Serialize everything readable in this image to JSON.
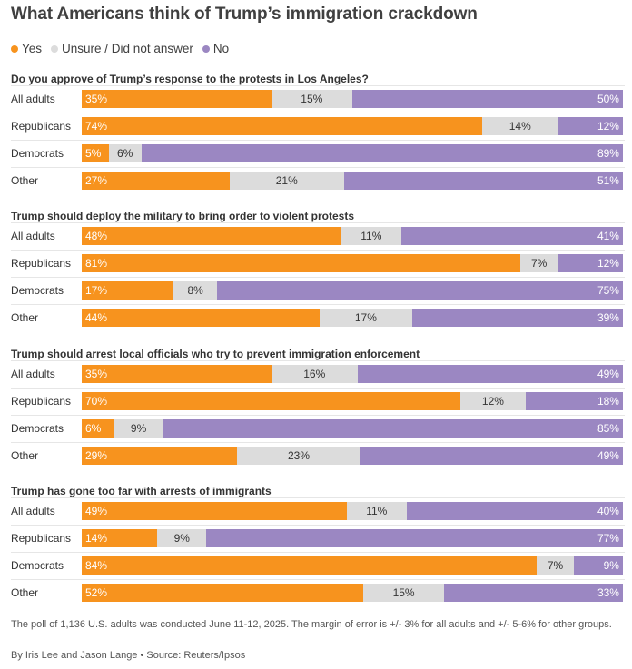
{
  "chart_data": {
    "type": "bar",
    "orientation": "horizontal-stacked-100",
    "title": "What Americans think of Trump’s immigration crackdown",
    "legend": [
      {
        "name": "Yes",
        "color": "#f7931e"
      },
      {
        "name": "Unsure / Did not answer",
        "color": "#dcdcdc"
      },
      {
        "name": "No",
        "color": "#9b87c2"
      }
    ],
    "categories": [
      "All adults",
      "Republicans",
      "Democrats",
      "Other"
    ],
    "panels": [
      {
        "question": "Do you approve of Trump’s response to the protests in Los Angeles?",
        "rows": [
          {
            "group": "All adults",
            "yes": 35,
            "unsure": 15,
            "no": 50
          },
          {
            "group": "Republicans",
            "yes": 74,
            "unsure": 14,
            "no": 12
          },
          {
            "group": "Democrats",
            "yes": 5,
            "unsure": 6,
            "no": 89
          },
          {
            "group": "Other",
            "yes": 27,
            "unsure": 21,
            "no": 51
          }
        ]
      },
      {
        "question": "Trump should deploy the military to bring order to violent protests",
        "rows": [
          {
            "group": "All adults",
            "yes": 48,
            "unsure": 11,
            "no": 41
          },
          {
            "group": "Republicans",
            "yes": 81,
            "unsure": 7,
            "no": 12
          },
          {
            "group": "Democrats",
            "yes": 17,
            "unsure": 8,
            "no": 75
          },
          {
            "group": "Other",
            "yes": 44,
            "unsure": 17,
            "no": 39
          }
        ]
      },
      {
        "question": "Trump should arrest local officials who try to prevent immigration enforcement",
        "rows": [
          {
            "group": "All adults",
            "yes": 35,
            "unsure": 16,
            "no": 49
          },
          {
            "group": "Republicans",
            "yes": 70,
            "unsure": 12,
            "no": 18
          },
          {
            "group": "Democrats",
            "yes": 6,
            "unsure": 9,
            "no": 85
          },
          {
            "group": "Other",
            "yes": 29,
            "unsure": 23,
            "no": 49
          }
        ]
      },
      {
        "question": "Trump has gone too far with arrests of immigrants",
        "rows": [
          {
            "group": "All adults",
            "yes": 49,
            "unsure": 11,
            "no": 40
          },
          {
            "group": "Republicans",
            "yes": 14,
            "unsure": 9,
            "no": 77
          },
          {
            "group": "Democrats",
            "yes": 84,
            "unsure": 7,
            "no": 9
          },
          {
            "group": "Other",
            "yes": 52,
            "unsure": 15,
            "no": 33
          }
        ]
      }
    ],
    "value_suffix": "%",
    "footnote": "The poll of 1,136 U.S. adults was conducted June 11-12, 2025. The margin of error is +/- 3% for all adults and +/- 5-6% for other groups.",
    "byline": "By Iris Lee and Jason Lange • Source: Reuters/Ipsos"
  }
}
